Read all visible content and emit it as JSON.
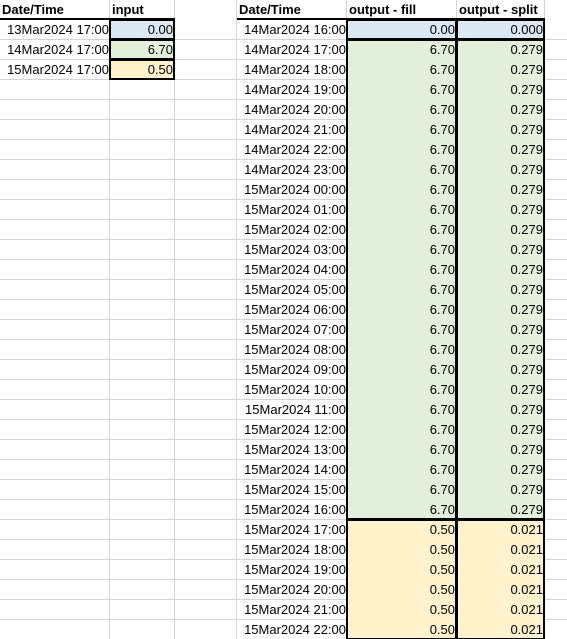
{
  "headers": {
    "a": "Date/Time",
    "b": "input",
    "d": "Date/Time",
    "e": "output - fill",
    "f": "output - split"
  },
  "colors": {
    "blue": "#dde8f5",
    "green": "#e2efda",
    "yellow": "#fff2cc",
    "gridline": "#d4d4d4"
  },
  "input_rows": [
    {
      "datetime": "13Mar2024 17:00",
      "value": "0.00",
      "color": "blue"
    },
    {
      "datetime": "14Mar2024 17:00",
      "value": "6.70",
      "color": "green"
    },
    {
      "datetime": "15Mar2024 17:00",
      "value": "0.50",
      "color": "yellow"
    }
  ],
  "output_rows": [
    {
      "datetime": "14Mar2024 16:00",
      "fill": "0.00",
      "split": "0.000",
      "color": "blue"
    },
    {
      "datetime": "14Mar2024 17:00",
      "fill": "6.70",
      "split": "0.279",
      "color": "green"
    },
    {
      "datetime": "14Mar2024 18:00",
      "fill": "6.70",
      "split": "0.279",
      "color": "green"
    },
    {
      "datetime": "14Mar2024 19:00",
      "fill": "6.70",
      "split": "0.279",
      "color": "green"
    },
    {
      "datetime": "14Mar2024 20:00",
      "fill": "6.70",
      "split": "0.279",
      "color": "green"
    },
    {
      "datetime": "14Mar2024 21:00",
      "fill": "6.70",
      "split": "0.279",
      "color": "green"
    },
    {
      "datetime": "14Mar2024 22:00",
      "fill": "6.70",
      "split": "0.279",
      "color": "green"
    },
    {
      "datetime": "14Mar2024 23:00",
      "fill": "6.70",
      "split": "0.279",
      "color": "green"
    },
    {
      "datetime": "15Mar2024 00:00",
      "fill": "6.70",
      "split": "0.279",
      "color": "green"
    },
    {
      "datetime": "15Mar2024 01:00",
      "fill": "6.70",
      "split": "0.279",
      "color": "green"
    },
    {
      "datetime": "15Mar2024 02:00",
      "fill": "6.70",
      "split": "0.279",
      "color": "green"
    },
    {
      "datetime": "15Mar2024 03:00",
      "fill": "6.70",
      "split": "0.279",
      "color": "green"
    },
    {
      "datetime": "15Mar2024 04:00",
      "fill": "6.70",
      "split": "0.279",
      "color": "green"
    },
    {
      "datetime": "15Mar2024 05:00",
      "fill": "6.70",
      "split": "0.279",
      "color": "green"
    },
    {
      "datetime": "15Mar2024 06:00",
      "fill": "6.70",
      "split": "0.279",
      "color": "green"
    },
    {
      "datetime": "15Mar2024 07:00",
      "fill": "6.70",
      "split": "0.279",
      "color": "green"
    },
    {
      "datetime": "15Mar2024 08:00",
      "fill": "6.70",
      "split": "0.279",
      "color": "green"
    },
    {
      "datetime": "15Mar2024 09:00",
      "fill": "6.70",
      "split": "0.279",
      "color": "green"
    },
    {
      "datetime": "15Mar2024 10:00",
      "fill": "6.70",
      "split": "0.279",
      "color": "green"
    },
    {
      "datetime": "15Mar2024 11:00",
      "fill": "6.70",
      "split": "0.279",
      "color": "green"
    },
    {
      "datetime": "15Mar2024 12:00",
      "fill": "6.70",
      "split": "0.279",
      "color": "green"
    },
    {
      "datetime": "15Mar2024 13:00",
      "fill": "6.70",
      "split": "0.279",
      "color": "green"
    },
    {
      "datetime": "15Mar2024 14:00",
      "fill": "6.70",
      "split": "0.279",
      "color": "green"
    },
    {
      "datetime": "15Mar2024 15:00",
      "fill": "6.70",
      "split": "0.279",
      "color": "green"
    },
    {
      "datetime": "15Mar2024 16:00",
      "fill": "6.70",
      "split": "0.279",
      "color": "green"
    },
    {
      "datetime": "15Mar2024 17:00",
      "fill": "0.50",
      "split": "0.021",
      "color": "yellow"
    },
    {
      "datetime": "15Mar2024 18:00",
      "fill": "0.50",
      "split": "0.021",
      "color": "yellow"
    },
    {
      "datetime": "15Mar2024 19:00",
      "fill": "0.50",
      "split": "0.021",
      "color": "yellow"
    },
    {
      "datetime": "15Mar2024 20:00",
      "fill": "0.50",
      "split": "0.021",
      "color": "yellow"
    },
    {
      "datetime": "15Mar2024 21:00",
      "fill": "0.50",
      "split": "0.021",
      "color": "yellow"
    },
    {
      "datetime": "15Mar2024 22:00",
      "fill": "0.50",
      "split": "0.021",
      "color": "yellow"
    }
  ]
}
